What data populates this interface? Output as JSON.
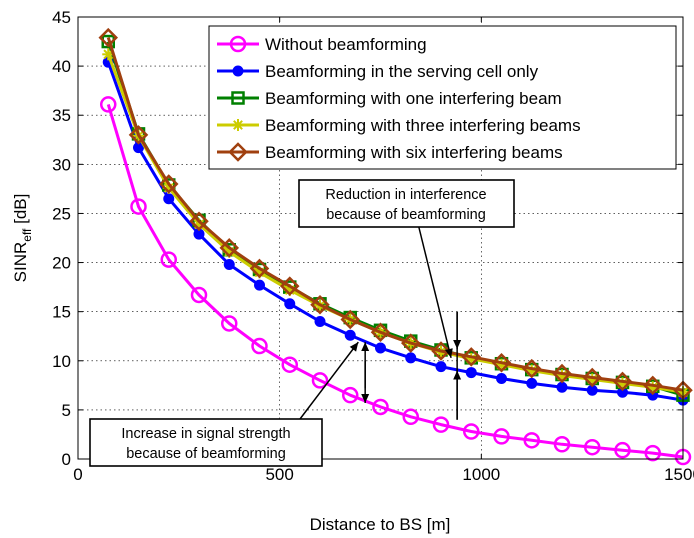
{
  "chart_data": {
    "type": "line",
    "xlabel": "Distance to BS [m]",
    "ylabel": {
      "main": "SINR",
      "sub": "eff",
      "unit": " [dB]"
    },
    "xlim": [
      0,
      1500
    ],
    "ylim": [
      0,
      45
    ],
    "xticks": [
      0,
      500,
      1000,
      1500
    ],
    "yticks": [
      0,
      5,
      10,
      15,
      20,
      25,
      30,
      35,
      40,
      45
    ],
    "grid": "dotted",
    "legend_position": "top-right",
    "x": [
      75,
      150,
      225,
      300,
      375,
      450,
      525,
      600,
      675,
      750,
      825,
      900,
      975,
      1050,
      1125,
      1200,
      1275,
      1350,
      1425,
      1500
    ],
    "series": [
      {
        "name": "Without beamforming",
        "color": "#ff00ff",
        "marker": "circle",
        "values": [
          36.1,
          25.7,
          20.3,
          16.7,
          13.8,
          11.5,
          9.6,
          8.0,
          6.5,
          5.3,
          4.3,
          3.5,
          2.8,
          2.3,
          1.9,
          1.5,
          1.2,
          0.9,
          0.6,
          0.2
        ]
      },
      {
        "name": "Beamforming in the serving cell only",
        "color": "#0000ff",
        "marker": "dot",
        "values": [
          40.4,
          31.7,
          26.5,
          22.9,
          19.8,
          17.7,
          15.8,
          14.0,
          12.6,
          11.3,
          10.3,
          9.4,
          8.8,
          8.2,
          7.7,
          7.3,
          7.0,
          6.8,
          6.5,
          6.0
        ]
      },
      {
        "name": "Beamforming with one interfering beam",
        "color": "#008000",
        "marker": "square",
        "values": [
          42.5,
          33.1,
          27.9,
          24.3,
          21.3,
          19.3,
          17.5,
          15.8,
          14.4,
          13.1,
          12.0,
          11.1,
          10.3,
          9.7,
          9.1,
          8.6,
          8.2,
          7.8,
          7.4,
          6.5
        ]
      },
      {
        "name": "Beamforming with three interfering beams",
        "color": "#cccc00",
        "marker": "star",
        "values": [
          41.2,
          32.9,
          27.6,
          23.9,
          21.1,
          19.0,
          17.2,
          15.6,
          14.2,
          12.9,
          11.8,
          10.9,
          10.2,
          9.6,
          9.0,
          8.5,
          8.1,
          7.7,
          7.3,
          6.8
        ]
      },
      {
        "name": "Beamforming with six interfering beams",
        "color": "#a0400f",
        "marker": "diamond",
        "values": [
          42.9,
          33.0,
          28.0,
          24.2,
          21.5,
          19.4,
          17.6,
          15.7,
          14.2,
          12.9,
          11.8,
          11.0,
          10.4,
          9.8,
          9.2,
          8.7,
          8.3,
          7.9,
          7.5,
          7.0
        ]
      }
    ],
    "annotations": [
      {
        "lines": [
          "Reduction in interference",
          "because of beamforming"
        ]
      },
      {
        "lines": [
          "Increase in signal strength",
          "because of beamforming"
        ]
      }
    ]
  }
}
